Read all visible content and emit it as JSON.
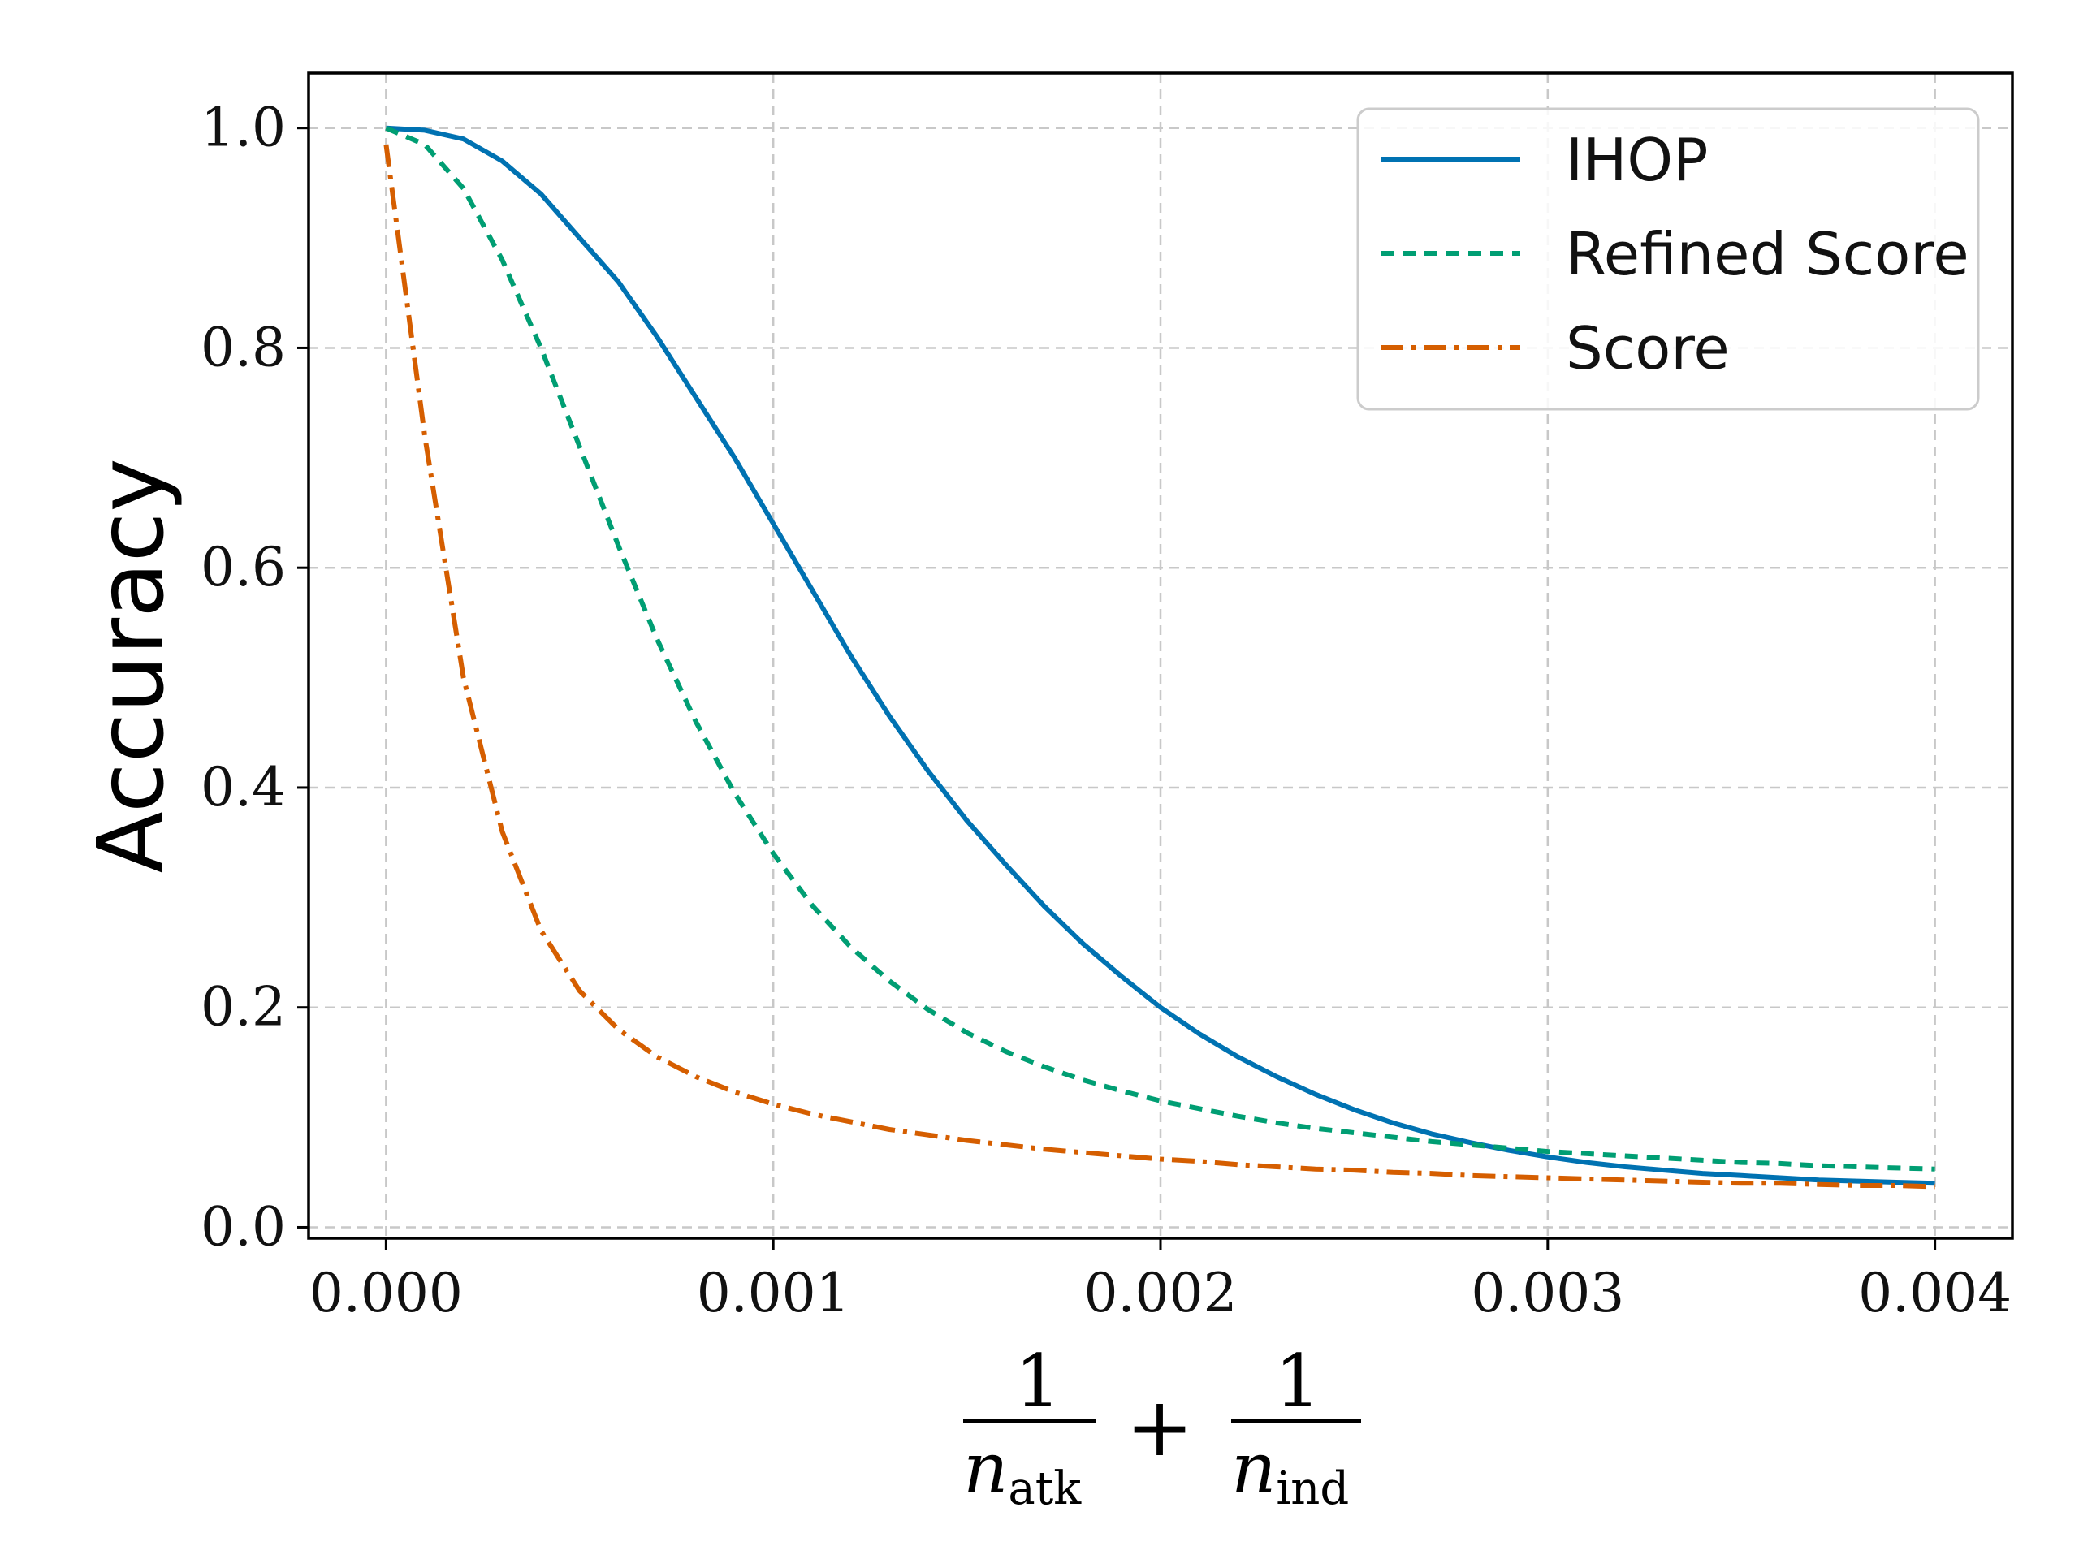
{
  "chart_data": {
    "type": "line",
    "title": "",
    "ylabel": "Accuracy",
    "xlabel": {
      "numerator_left": "1",
      "denominator_left_var": "n",
      "denominator_left_sub": "atk",
      "operator": "+",
      "numerator_right": "1",
      "denominator_right_var": "n",
      "denominator_right_sub": "ind"
    },
    "xlim": [
      -0.0002,
      0.0042
    ],
    "ylim": [
      -0.01,
      1.05
    ],
    "xticks": [
      0.0,
      0.001,
      0.002,
      0.003,
      0.004
    ],
    "xtick_labels": [
      "0.000",
      "0.001",
      "0.002",
      "0.003",
      "0.004"
    ],
    "yticks": [
      0.0,
      0.2,
      0.4,
      0.6,
      0.8,
      1.0
    ],
    "ytick_labels": [
      "0.0",
      "0.2",
      "0.4",
      "0.6",
      "0.8",
      "1.0"
    ],
    "grid": true,
    "legend_position": "top-right",
    "x": [
      0.0,
      0.0001,
      0.0002,
      0.0003,
      0.0004,
      0.0005,
      0.0006,
      0.0007,
      0.0008,
      0.0009,
      0.001,
      0.0011,
      0.0012,
      0.0013,
      0.0014,
      0.0015,
      0.0016,
      0.0017,
      0.0018,
      0.0019,
      0.002,
      0.0021,
      0.0022,
      0.0023,
      0.0024,
      0.0025,
      0.0026,
      0.0027,
      0.0028,
      0.0029,
      0.003,
      0.0031,
      0.0032,
      0.0033,
      0.0034,
      0.0035,
      0.0036,
      0.0037,
      0.0038,
      0.0039,
      0.004
    ],
    "series": [
      {
        "name": "IHOP",
        "color": "#0072b2",
        "style": "solid",
        "values": [
          1.0,
          0.998,
          0.99,
          0.97,
          0.94,
          0.9,
          0.86,
          0.81,
          0.755,
          0.7,
          0.64,
          0.58,
          0.52,
          0.465,
          0.415,
          0.37,
          0.33,
          0.292,
          0.258,
          0.228,
          0.2,
          0.176,
          0.155,
          0.137,
          0.121,
          0.107,
          0.095,
          0.085,
          0.077,
          0.07,
          0.064,
          0.059,
          0.055,
          0.052,
          0.049,
          0.047,
          0.045,
          0.043,
          0.042,
          0.041,
          0.04
        ]
      },
      {
        "name": "Refined Score",
        "color": "#009e73",
        "style": "dashed",
        "values": [
          1.0,
          0.985,
          0.945,
          0.88,
          0.8,
          0.71,
          0.62,
          0.535,
          0.46,
          0.395,
          0.34,
          0.293,
          0.255,
          0.224,
          0.198,
          0.177,
          0.16,
          0.146,
          0.134,
          0.124,
          0.115,
          0.108,
          0.101,
          0.095,
          0.09,
          0.086,
          0.082,
          0.078,
          0.075,
          0.072,
          0.069,
          0.067,
          0.065,
          0.063,
          0.061,
          0.059,
          0.058,
          0.056,
          0.055,
          0.054,
          0.053
        ]
      },
      {
        "name": "Score",
        "color": "#d55e00",
        "style": "dashdot",
        "values": [
          0.985,
          0.72,
          0.5,
          0.36,
          0.27,
          0.215,
          0.18,
          0.155,
          0.137,
          0.123,
          0.112,
          0.103,
          0.096,
          0.089,
          0.084,
          0.079,
          0.075,
          0.071,
          0.068,
          0.065,
          0.062,
          0.06,
          0.057,
          0.055,
          0.053,
          0.052,
          0.05,
          0.049,
          0.047,
          0.046,
          0.045,
          0.044,
          0.043,
          0.042,
          0.041,
          0.04,
          0.04,
          0.039,
          0.038,
          0.038,
          0.037
        ]
      }
    ]
  }
}
